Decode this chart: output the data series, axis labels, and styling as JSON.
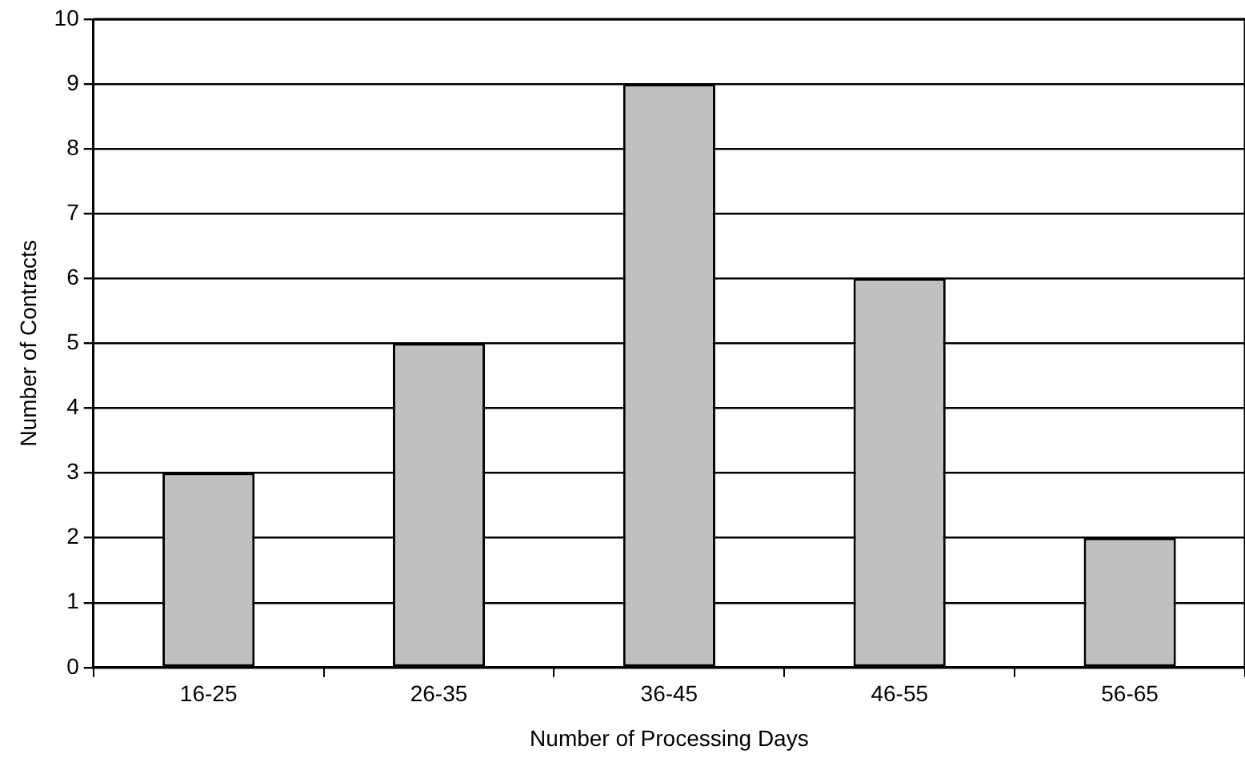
{
  "chart_data": {
    "type": "bar",
    "xlabel": "Number of Processing Days",
    "ylabel": "Number of Contracts",
    "categories": [
      "16-25",
      "26-35",
      "36-45",
      "46-55",
      "56-65"
    ],
    "values": [
      3,
      5,
      9,
      6,
      2
    ],
    "color": "#c0c0c0",
    "ylim": [
      0,
      10
    ],
    "yticks": [
      0,
      1,
      2,
      3,
      4,
      5,
      6,
      7,
      8,
      9,
      10
    ],
    "grid": "y"
  }
}
